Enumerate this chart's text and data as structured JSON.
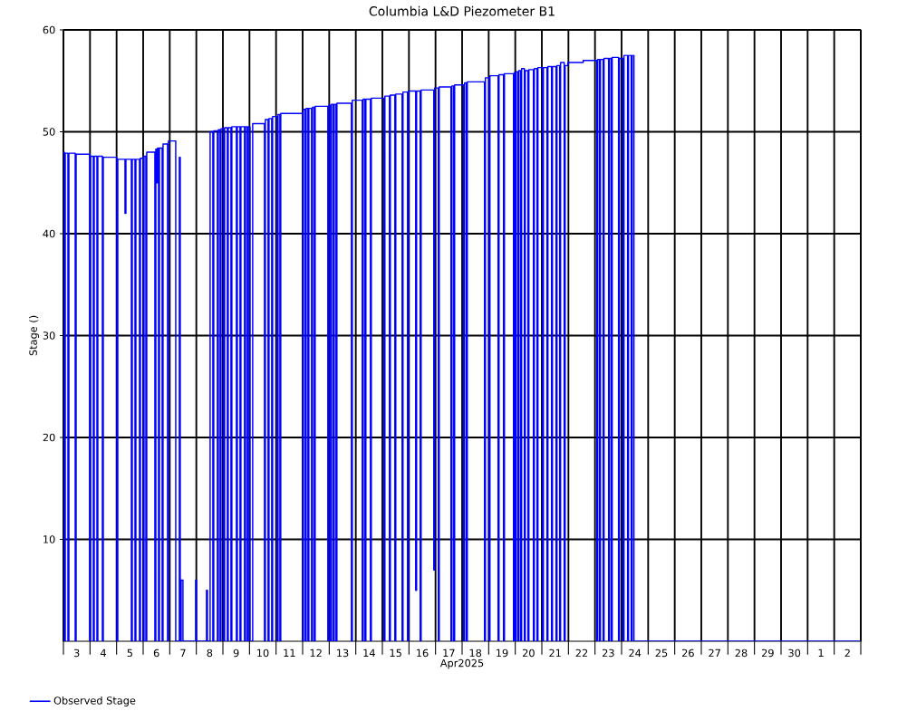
{
  "chart_data": {
    "type": "step",
    "title": "Columbia L&D Piezometer B1",
    "xlabel": "Apr2025",
    "ylabel": "Stage ()",
    "xlim": [
      "2025-04-03T00:00",
      "2025-05-03T00:00"
    ],
    "xticks": [
      {
        "value": "2025-04-03T00:00",
        "label": null
      },
      {
        "value": "2025-04-03T12:00",
        "label": "3"
      },
      {
        "value": "2025-04-04T00:00",
        "label": null
      },
      {
        "value": "2025-04-04T12:00",
        "label": "4"
      },
      {
        "value": "2025-04-05T00:00",
        "label": null
      },
      {
        "value": "2025-04-05T12:00",
        "label": "5"
      },
      {
        "value": "2025-04-06T00:00",
        "label": null
      },
      {
        "value": "2025-04-06T12:00",
        "label": "6"
      },
      {
        "value": "2025-04-07T00:00",
        "label": null
      },
      {
        "value": "2025-04-07T12:00",
        "label": "7"
      },
      {
        "value": "2025-04-08T00:00",
        "label": null
      },
      {
        "value": "2025-04-08T12:00",
        "label": "8"
      },
      {
        "value": "2025-04-09T00:00",
        "label": null
      },
      {
        "value": "2025-04-09T12:00",
        "label": "9"
      },
      {
        "value": "2025-04-10T00:00",
        "label": null
      },
      {
        "value": "2025-04-10T12:00",
        "label": "10"
      },
      {
        "value": "2025-04-11T00:00",
        "label": null
      },
      {
        "value": "2025-04-11T12:00",
        "label": "11"
      },
      {
        "value": "2025-04-12T00:00",
        "label": null
      },
      {
        "value": "2025-04-12T12:00",
        "label": "12"
      },
      {
        "value": "2025-04-13T00:00",
        "label": null
      },
      {
        "value": "2025-04-13T12:00",
        "label": "13"
      },
      {
        "value": "2025-04-14T00:00",
        "label": null
      },
      {
        "value": "2025-04-14T12:00",
        "label": "14"
      },
      {
        "value": "2025-04-15T00:00",
        "label": null
      },
      {
        "value": "2025-04-15T12:00",
        "label": "15"
      },
      {
        "value": "2025-04-16T00:00",
        "label": null
      },
      {
        "value": "2025-04-16T12:00",
        "label": "16"
      },
      {
        "value": "2025-04-17T00:00",
        "label": null
      },
      {
        "value": "2025-04-17T12:00",
        "label": "17"
      },
      {
        "value": "2025-04-18T00:00",
        "label": null
      },
      {
        "value": "2025-04-18T12:00",
        "label": "18"
      },
      {
        "value": "2025-04-19T00:00",
        "label": null
      },
      {
        "value": "2025-04-19T12:00",
        "label": "19"
      },
      {
        "value": "2025-04-20T00:00",
        "label": null
      },
      {
        "value": "2025-04-20T12:00",
        "label": "20"
      },
      {
        "value": "2025-04-21T00:00",
        "label": null
      },
      {
        "value": "2025-04-21T12:00",
        "label": "21"
      },
      {
        "value": "2025-04-22T00:00",
        "label": null
      },
      {
        "value": "2025-04-22T12:00",
        "label": "22"
      },
      {
        "value": "2025-04-23T00:00",
        "label": null
      },
      {
        "value": "2025-04-23T12:00",
        "label": "23"
      },
      {
        "value": "2025-04-24T00:00",
        "label": null
      },
      {
        "value": "2025-04-24T12:00",
        "label": "24"
      },
      {
        "value": "2025-04-25T00:00",
        "label": null
      },
      {
        "value": "2025-04-25T12:00",
        "label": "25"
      },
      {
        "value": "2025-04-26T00:00",
        "label": null
      },
      {
        "value": "2025-04-26T12:00",
        "label": "26"
      },
      {
        "value": "2025-04-27T00:00",
        "label": null
      },
      {
        "value": "2025-04-27T12:00",
        "label": "27"
      },
      {
        "value": "2025-04-28T00:00",
        "label": null
      },
      {
        "value": "2025-04-28T12:00",
        "label": "28"
      },
      {
        "value": "2025-04-29T00:00",
        "label": null
      },
      {
        "value": "2025-04-29T12:00",
        "label": "29"
      },
      {
        "value": "2025-04-30T00:00",
        "label": null
      },
      {
        "value": "2025-04-30T12:00",
        "label": "30"
      },
      {
        "value": "2025-05-01T00:00",
        "label": null
      },
      {
        "value": "2025-05-01T12:00",
        "label": "1"
      },
      {
        "value": "2025-05-02T00:00",
        "label": null
      },
      {
        "value": "2025-05-02T12:00",
        "label": "2"
      },
      {
        "value": "2025-05-03T00:00",
        "label": null
      }
    ],
    "ylim": [
      0,
      60
    ],
    "yticks": [
      10,
      20,
      30,
      40,
      50,
      60
    ],
    "grid": true,
    "legend": "bottom left",
    "series": [
      {
        "name": "Observed Stage",
        "color": "#0000ff",
        "x": [
          "2025-04-03T00:00",
          "2025-04-03T00:49",
          "2025-04-03T01:38",
          "2025-04-03T04:05",
          "2025-04-03T04:55",
          "2025-04-03T10:38",
          "2025-04-03T11:27",
          "2025-04-03T23:43",
          "2025-04-04T00:32",
          "2025-04-04T02:59",
          "2025-04-04T03:48",
          "2025-04-04T06:15",
          "2025-04-04T07:04",
          "2025-04-04T11:10",
          "2025-04-04T11:59",
          "2025-04-05T00:15",
          "2025-04-05T01:04",
          "2025-04-05T07:36",
          "2025-04-05T08:25",
          "2025-04-05T13:20",
          "2025-04-05T14:09",
          "2025-04-05T16:36",
          "2025-04-05T17:25",
          "2025-04-05T20:41",
          "2025-04-05T21:30",
          "2025-04-05T23:58",
          "2025-04-06T00:47",
          "2025-04-06T02:25",
          "2025-04-06T03:14",
          "2025-04-06T10:35",
          "2025-04-06T11:25",
          "2025-04-06T12:13",
          "2025-04-06T13:02",
          "2025-04-06T13:52",
          "2025-04-06T14:41",
          "2025-04-06T17:08",
          "2025-04-06T17:57",
          "2025-04-06T22:02",
          "2025-04-06T22:51",
          "2025-04-07T05:24",
          "2025-04-07T08:40",
          "2025-04-07T09:29",
          "2025-04-07T10:18",
          "2025-04-07T11:56",
          "2025-04-07T23:23",
          "2025-04-08T00:12",
          "2025-04-08T09:12",
          "2025-04-08T10:01",
          "2025-04-08T12:28",
          "2025-04-08T14:55",
          "2025-04-08T15:44",
          "2025-04-08T19:01",
          "2025-04-08T19:50",
          "2025-04-08T21:28",
          "2025-04-08T22:17",
          "2025-04-09T00:44",
          "2025-04-09T01:33",
          "2025-04-09T04:00",
          "2025-04-09T04:49",
          "2025-04-09T07:16",
          "2025-04-09T08:05",
          "2025-04-09T12:11",
          "2025-04-09T13:00",
          "2025-04-09T15:27",
          "2025-04-09T16:16",
          "2025-04-09T19:32",
          "2025-04-09T20:22",
          "2025-04-09T21:59",
          "2025-04-09T22:49",
          "2025-04-10T00:27",
          "2025-04-10T02:54",
          "2025-04-10T13:32",
          "2025-04-10T14:21",
          "2025-04-10T16:48",
          "2025-04-10T17:37",
          "2025-04-10T20:04",
          "2025-04-10T20:53",
          "2025-04-11T00:59",
          "2025-04-11T01:47",
          "2025-04-11T03:26",
          "2025-04-11T04:15",
          "2025-04-11T23:52",
          "2025-04-12T00:41",
          "2025-04-12T02:20",
          "2025-04-12T03:08",
          "2025-04-12T04:47",
          "2025-04-12T05:36",
          "2025-04-12T08:03",
          "2025-04-12T08:52",
          "2025-04-12T10:30",
          "2025-04-12T11:19",
          "2025-04-12T22:46",
          "2025-04-12T23:35",
          "2025-04-13T01:13",
          "2025-04-13T02:02",
          "2025-04-13T03:40",
          "2025-04-13T04:29",
          "2025-04-13T06:08",
          "2025-04-13T06:57",
          "2025-04-13T20:02",
          "2025-04-13T20:51",
          "2025-04-14T05:50",
          "2025-04-14T06:40",
          "2025-04-14T08:17",
          "2025-04-14T09:07",
          "2025-04-14T13:12",
          "2025-04-14T14:01",
          "2025-04-15T01:28",
          "2025-04-15T02:17",
          "2025-04-15T06:22",
          "2025-04-15T07:11",
          "2025-04-15T11:17",
          "2025-04-15T12:06",
          "2025-04-15T17:49",
          "2025-04-15T18:38",
          "2025-04-15T22:44",
          "2025-04-15T23:33",
          "2025-04-16T06:05",
          "2025-04-16T06:54",
          "2025-04-16T10:10",
          "2025-04-16T10:59",
          "2025-04-16T22:26",
          "2025-04-16T23:15",
          "2025-04-17T02:32",
          "2025-04-17T03:21",
          "2025-04-17T13:59",
          "2025-04-17T14:48",
          "2025-04-17T16:26",
          "2025-04-17T17:15",
          "2025-04-18T01:25",
          "2025-04-18T02:14",
          "2025-04-18T03:53",
          "2025-04-18T04:41",
          "2025-04-18T20:14",
          "2025-04-18T21:03",
          "2025-04-19T00:19",
          "2025-04-19T01:08",
          "2025-04-19T08:30",
          "2025-04-19T09:19",
          "2025-04-19T13:24",
          "2025-04-19T14:13",
          "2025-04-19T22:24",
          "2025-04-19T23:13",
          "2025-04-20T00:02",
          "2025-04-20T00:51",
          "2025-04-20T02:29",
          "2025-04-20T03:18",
          "2025-04-20T04:56",
          "2025-04-20T05:45",
          "2025-04-20T08:13",
          "2025-04-20T09:02",
          "2025-04-20T11:29",
          "2025-04-20T12:18",
          "2025-04-20T16:23",
          "2025-04-20T17:12",
          "2025-04-20T19:40",
          "2025-04-20T20:28",
          "2025-04-21T00:34",
          "2025-04-21T01:23",
          "2025-04-21T04:39",
          "2025-04-21T05:28",
          "2025-04-21T08:44",
          "2025-04-21T09:34",
          "2025-04-21T12:50",
          "2025-04-21T13:39",
          "2025-04-21T16:06",
          "2025-04-21T16:55",
          "2025-04-21T20:11",
          "2025-04-21T21:01",
          "2025-04-21T23:28",
          "2025-04-22T13:22",
          "2025-04-23T01:38",
          "2025-04-23T02:26",
          "2025-04-23T04:05",
          "2025-04-23T04:54",
          "2025-04-23T07:21",
          "2025-04-23T08:10",
          "2025-04-23T12:16",
          "2025-04-23T13:04",
          "2025-04-23T14:43",
          "2025-04-23T15:32",
          "2025-04-23T21:15",
          "2025-04-23T22:04",
          "2025-04-24T01:20",
          "2025-04-24T02:10",
          "2025-04-24T05:26",
          "2025-04-24T06:15",
          "2025-04-24T08:42",
          "2025-04-24T09:31",
          "2025-04-24T11:09",
          "2025-05-03T00:00"
        ],
        "values": [
          48.0,
          0,
          47.9,
          0,
          47.9,
          0,
          47.8,
          0,
          47.6,
          0,
          47.6,
          0,
          47.6,
          0,
          47.5,
          0,
          47.3,
          42,
          47.3,
          0,
          47.3,
          0,
          47.3,
          0,
          47.4,
          0,
          47.6,
          0,
          48.0,
          0,
          48.3,
          45,
          48.4,
          0,
          48.4,
          0,
          48.8,
          0,
          49.1,
          0,
          47.5,
          0,
          6,
          0,
          6,
          0,
          5,
          0,
          50.0,
          0,
          50.1,
          0,
          50.2,
          0,
          50.3,
          0,
          50.4,
          0,
          50.4,
          0,
          50.5,
          0,
          50.5,
          0,
          50.5,
          0,
          50.5,
          0,
          50.5,
          0,
          50.8,
          0,
          51.2,
          0,
          51.3,
          0,
          51.5,
          0,
          51.7,
          0,
          51.8,
          0,
          52.2,
          0,
          52.3,
          0,
          52.3,
          0,
          52.4,
          0,
          52.5,
          0,
          52.6,
          0,
          52.7,
          0,
          52.7,
          0,
          52.8,
          0,
          53.1,
          0,
          53.2,
          0,
          53.2,
          0,
          53.3,
          0,
          53.5,
          0,
          53.6,
          0,
          53.7,
          0,
          53.9,
          0,
          54.0,
          5,
          54.0,
          0,
          54.1,
          7,
          54.3,
          0,
          54.4,
          0,
          54.5,
          0,
          54.6,
          0,
          54.8,
          0,
          54.9,
          0,
          55.3,
          0,
          55.5,
          0,
          55.6,
          0,
          55.7,
          0,
          55.8,
          0,
          55.9,
          0,
          56.0,
          0,
          56.2,
          0,
          56.0,
          0,
          56.1,
          0,
          56.2,
          0,
          56.3,
          0,
          56.3,
          0,
          56.4,
          0,
          56.4,
          0,
          56.5,
          0,
          56.8,
          0,
          56.5,
          56.8,
          57.0,
          0,
          57.1,
          0,
          57.1,
          0,
          57.2,
          0,
          57.2,
          0,
          57.3,
          0,
          57.2,
          0,
          57.5,
          0,
          57.5,
          0,
          57.5,
          0,
          0
        ]
      }
    ]
  }
}
